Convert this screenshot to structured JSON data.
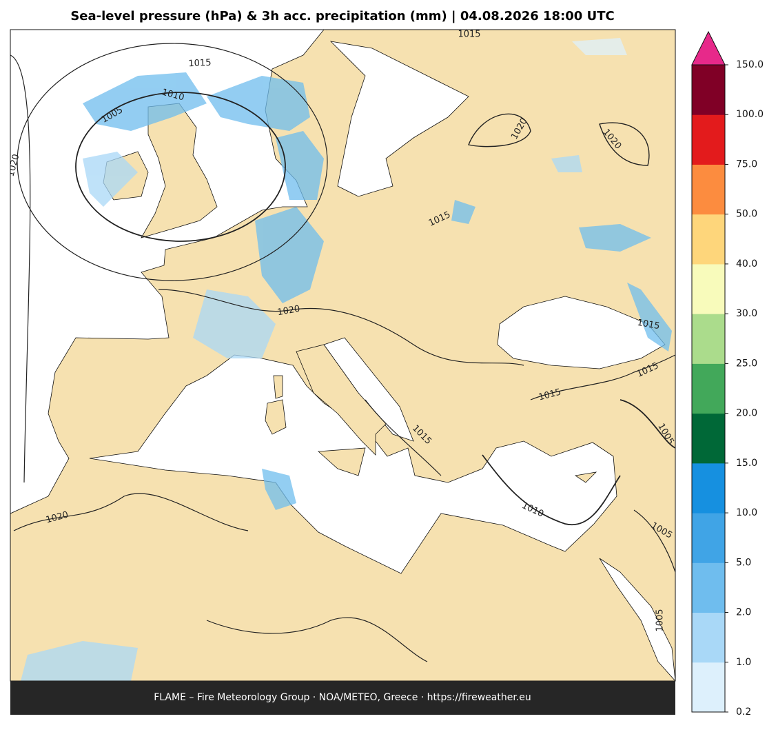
{
  "title": "Sea-level pressure (hPa) & 3h acc. precipitation (mm)  |  04.08.2026 18:00 UTC",
  "footer": "FLAME – Fire Meteorology Group · NOA/METEO, Greece · https://fireweather.eu",
  "colorbar": {
    "ticks": [
      {
        "value": 0.2,
        "label": "0.2"
      },
      {
        "value": 1,
        "label": "1.0"
      },
      {
        "value": 2,
        "label": "2.0"
      },
      {
        "value": 5,
        "label": "5.0"
      },
      {
        "value": 10,
        "label": "10.0"
      },
      {
        "value": 15,
        "label": "15.0"
      },
      {
        "value": 20,
        "label": "20.0"
      },
      {
        "value": 25,
        "label": "25.0"
      },
      {
        "value": 30,
        "label": "30.0"
      },
      {
        "value": 40,
        "label": "40.0"
      },
      {
        "value": 50,
        "label": "50.0"
      },
      {
        "value": 75,
        "label": "75.0"
      },
      {
        "value": 100,
        "label": "100.0"
      },
      {
        "value": 150,
        "label": "150.0"
      }
    ],
    "colors": [
      "#ddf0fc",
      "#a9d8f7",
      "#6fbdee",
      "#40a4e6",
      "#1690e0",
      "#006837",
      "#42a85a",
      "#abdc8c",
      "#f8fbbb",
      "#fed67b",
      "#fc8c3f",
      "#e31b1c",
      "#800026"
    ],
    "extend_color": "#e7298a"
  },
  "isobar_labels": [
    "1015",
    "1015",
    "1010",
    "1005",
    "1020",
    "1020",
    "1020",
    "1015",
    "1020",
    "1015",
    "1015",
    "1015",
    "1005",
    "1015",
    "1010",
    "1020",
    "1005",
    "1005"
  ]
}
